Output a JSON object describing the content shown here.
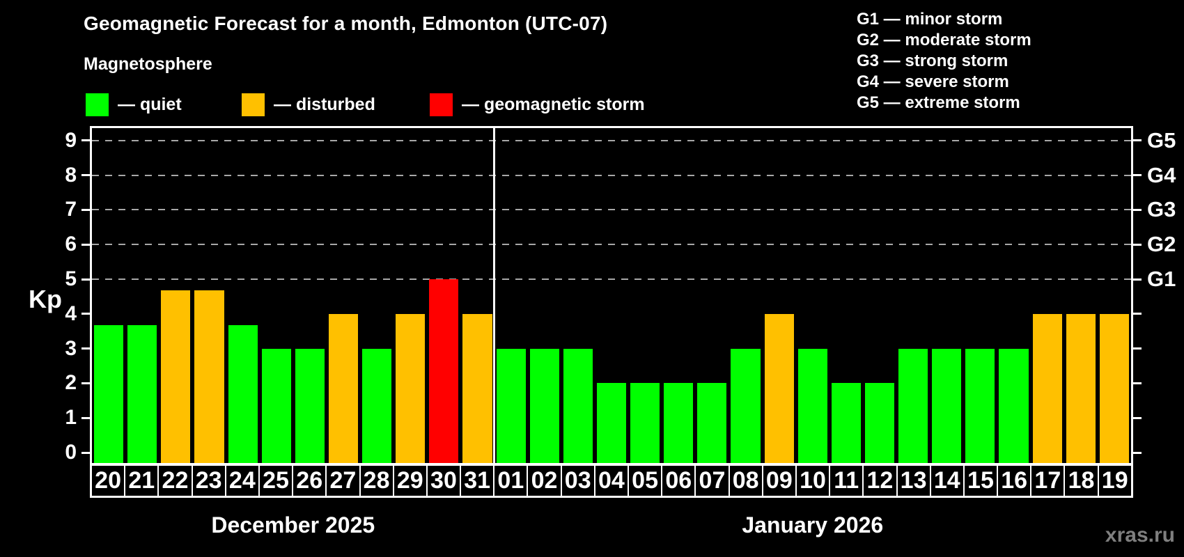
{
  "title": "Geomagnetic Forecast for a month, Edmonton (UTC-07)",
  "subtitle": "Magnetosphere",
  "watermark": "xras.ru",
  "legend": {
    "items": [
      {
        "label": "— quiet",
        "state": "quiet",
        "color": "#00ff00"
      },
      {
        "label": "— disturbed",
        "state": "disturbed",
        "color": "#ffc000"
      },
      {
        "label": "— geomagnetic storm",
        "state": "storm",
        "color": "#ff0000"
      }
    ]
  },
  "g_legend": {
    "items": [
      {
        "label": "G1 — minor storm"
      },
      {
        "label": "G2 — moderate storm"
      },
      {
        "label": "G3 — strong storm"
      },
      {
        "label": "G4 — severe storm"
      },
      {
        "label": "G5 — extreme storm"
      }
    ]
  },
  "chart_data": {
    "type": "bar",
    "title": "Geomagnetic Forecast for a month, Edmonton (UTC-07)",
    "ylabel": "Kp",
    "ylim": [
      0,
      9.4
    ],
    "y_ticks": [
      0,
      1,
      2,
      3,
      4,
      5,
      6,
      7,
      8,
      9
    ],
    "grid_levels": [
      5,
      6,
      7,
      8,
      9
    ],
    "grid_color": "#a8a8a8",
    "legend_position": "top",
    "right_axis_labels": [
      {
        "value": 5,
        "label": "G1"
      },
      {
        "value": 6,
        "label": "G2"
      },
      {
        "value": 7,
        "label": "G3"
      },
      {
        "value": 8,
        "label": "G4"
      },
      {
        "value": 9,
        "label": "G5"
      }
    ],
    "state_colors": {
      "quiet": "#00ff00",
      "disturbed": "#ffc000",
      "storm": "#ff0000"
    },
    "months": [
      {
        "label": "December 2025",
        "points": [
          {
            "day": "20",
            "kp": 3.67,
            "state": "quiet"
          },
          {
            "day": "21",
            "kp": 3.67,
            "state": "quiet"
          },
          {
            "day": "22",
            "kp": 4.67,
            "state": "disturbed"
          },
          {
            "day": "23",
            "kp": 4.67,
            "state": "disturbed"
          },
          {
            "day": "24",
            "kp": 3.67,
            "state": "quiet"
          },
          {
            "day": "25",
            "kp": 3,
            "state": "quiet"
          },
          {
            "day": "26",
            "kp": 3,
            "state": "quiet"
          },
          {
            "day": "27",
            "kp": 4,
            "state": "disturbed"
          },
          {
            "day": "28",
            "kp": 3,
            "state": "quiet"
          },
          {
            "day": "29",
            "kp": 4,
            "state": "disturbed"
          },
          {
            "day": "30",
            "kp": 5,
            "state": "storm"
          },
          {
            "day": "31",
            "kp": 4,
            "state": "disturbed"
          }
        ]
      },
      {
        "label": "January 2026",
        "points": [
          {
            "day": "01",
            "kp": 3,
            "state": "quiet"
          },
          {
            "day": "02",
            "kp": 3,
            "state": "quiet"
          },
          {
            "day": "03",
            "kp": 3,
            "state": "quiet"
          },
          {
            "day": "04",
            "kp": 2,
            "state": "quiet"
          },
          {
            "day": "05",
            "kp": 2,
            "state": "quiet"
          },
          {
            "day": "06",
            "kp": 2,
            "state": "quiet"
          },
          {
            "day": "07",
            "kp": 2,
            "state": "quiet"
          },
          {
            "day": "08",
            "kp": 3,
            "state": "quiet"
          },
          {
            "day": "09",
            "kp": 4,
            "state": "disturbed"
          },
          {
            "day": "10",
            "kp": 3,
            "state": "quiet"
          },
          {
            "day": "11",
            "kp": 2,
            "state": "quiet"
          },
          {
            "day": "12",
            "kp": 2,
            "state": "quiet"
          },
          {
            "day": "13",
            "kp": 3,
            "state": "quiet"
          },
          {
            "day": "14",
            "kp": 3,
            "state": "quiet"
          },
          {
            "day": "15",
            "kp": 3,
            "state": "quiet"
          },
          {
            "day": "16",
            "kp": 3,
            "state": "quiet"
          },
          {
            "day": "17",
            "kp": 4,
            "state": "disturbed"
          },
          {
            "day": "18",
            "kp": 4,
            "state": "disturbed"
          },
          {
            "day": "19",
            "kp": 4,
            "state": "disturbed"
          }
        ]
      }
    ]
  }
}
